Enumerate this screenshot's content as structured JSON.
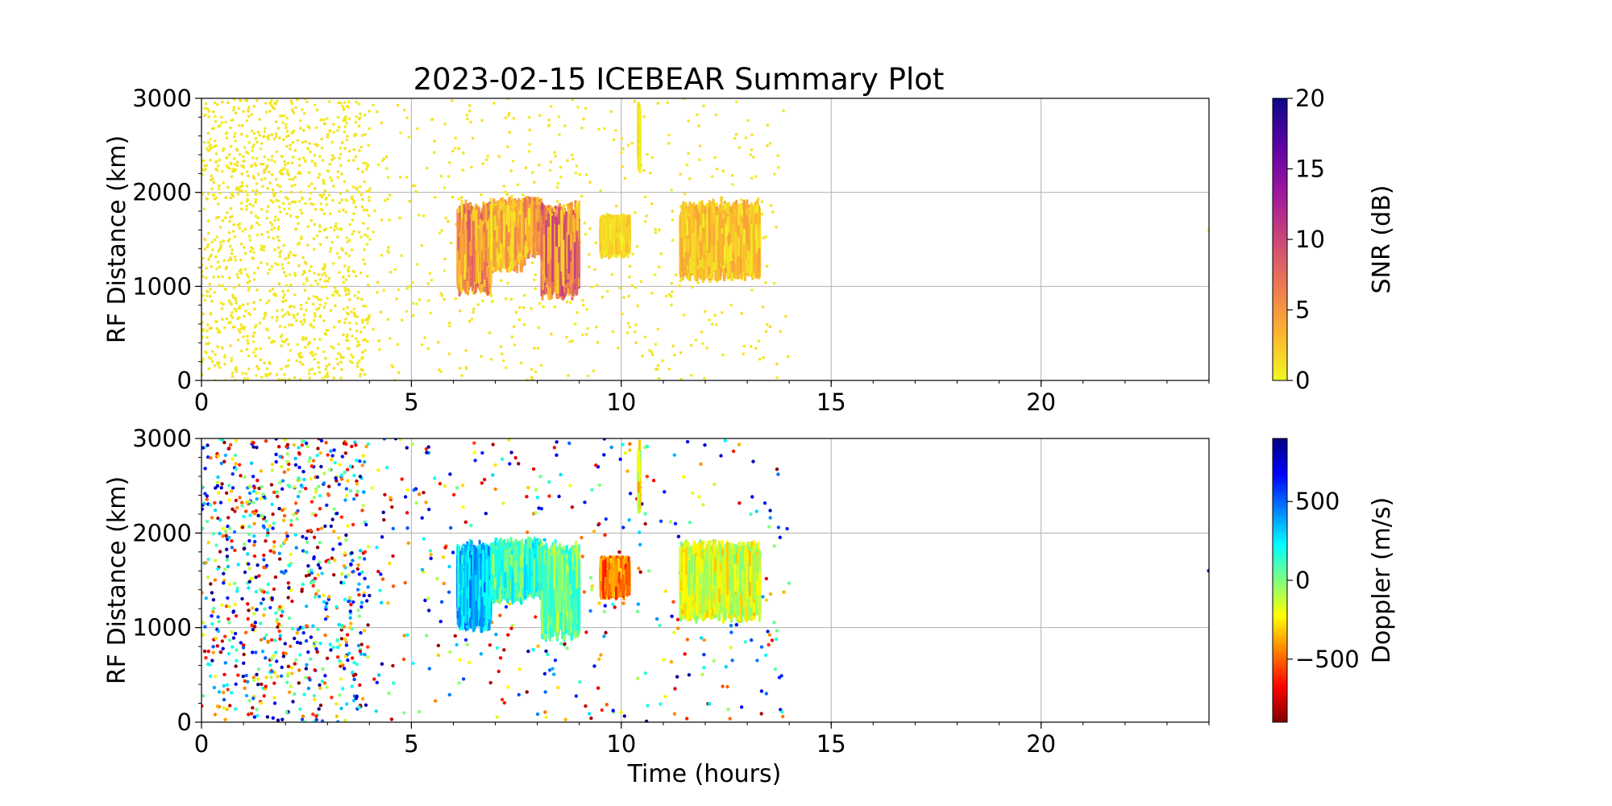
{
  "title": "2023-02-15 ICEBEAR Summary Plot",
  "chart_data": [
    {
      "type": "scatter",
      "name": "snr-panel",
      "xlabel": "",
      "ylabel": "RF Distance (km)",
      "xlim": [
        0,
        24
      ],
      "ylim": [
        0,
        3000
      ],
      "xticks": [
        "0",
        "5",
        "10",
        "15",
        "20"
      ],
      "xtick_values": [
        0,
        5,
        10,
        15,
        20
      ],
      "yticks": [
        "0",
        "1000",
        "2000",
        "3000"
      ],
      "ytick_values": [
        0,
        1000,
        2000,
        3000
      ],
      "grid": true,
      "colorbar": {
        "label": "SNR (dB)",
        "range": [
          0,
          20
        ],
        "ticks": [
          "0",
          "5",
          "10",
          "15",
          "20"
        ],
        "tick_values": [
          0,
          5,
          10,
          15,
          20
        ],
        "colormap": "plasma_r",
        "colors": [
          "#f0f921",
          "#fdb42f",
          "#ed7953",
          "#cc4778",
          "#9c179e",
          "#5c01a6",
          "#0d0887"
        ]
      },
      "background_noise": {
        "t_range": [
          0,
          14
        ],
        "density": "high for t<4, moderate after",
        "typical_snr": 0.5
      },
      "echo_regions": [
        {
          "t": [
            6.1,
            6.9
          ],
          "range_km": [
            900,
            1950
          ],
          "snr": 6
        },
        {
          "t": [
            6.9,
            7.7
          ],
          "range_km": [
            1150,
            1950
          ],
          "snr": 4
        },
        {
          "t": [
            7.7,
            8.1
          ],
          "range_km": [
            1300,
            1950
          ],
          "snr": 5
        },
        {
          "t": [
            8.1,
            9.0
          ],
          "range_km": [
            850,
            1950
          ],
          "snr": 7
        },
        {
          "t": [
            9.5,
            10.2
          ],
          "range_km": [
            1300,
            1750
          ],
          "snr": 2
        },
        {
          "t": [
            10.4,
            10.45
          ],
          "range_km": [
            2200,
            2980
          ],
          "snr": 1
        },
        {
          "t": [
            11.4,
            13.3
          ],
          "range_km": [
            1050,
            1950
          ],
          "snr": 3
        }
      ],
      "isolated_points": [
        {
          "t": 24.0,
          "range_km": 1600,
          "snr": 0.5
        }
      ]
    },
    {
      "type": "scatter",
      "name": "doppler-panel",
      "xlabel": "Time (hours)",
      "ylabel": "RF Distance (km)",
      "xlim": [
        0,
        24
      ],
      "ylim": [
        0,
        3000
      ],
      "xticks": [
        "0",
        "5",
        "10",
        "15",
        "20"
      ],
      "xtick_values": [
        0,
        5,
        10,
        15,
        20
      ],
      "yticks": [
        "0",
        "1000",
        "2000",
        "3000"
      ],
      "ytick_values": [
        0,
        1000,
        2000,
        3000
      ],
      "grid": true,
      "colorbar": {
        "label": "Doppler (m/s)",
        "range": [
          -900,
          900
        ],
        "ticks": [
          "−500",
          "0",
          "500"
        ],
        "tick_values": [
          -500,
          0,
          500
        ],
        "colormap": "jet_r",
        "colors": [
          "#800000",
          "#ff0000",
          "#ff8000",
          "#ffff00",
          "#80ff80",
          "#00ffff",
          "#0080ff",
          "#0000ff",
          "#000080"
        ]
      },
      "background_noise": {
        "t_range": [
          0,
          14
        ],
        "density": "high for t<4, moderate after",
        "doppler": "random full range"
      },
      "echo_regions": [
        {
          "t": [
            6.1,
            6.9
          ],
          "range_km": [
            950,
            1950
          ],
          "doppler": 350
        },
        {
          "t": [
            6.9,
            7.7
          ],
          "range_km": [
            1250,
            1950
          ],
          "doppler": 100
        },
        {
          "t": [
            7.7,
            8.1
          ],
          "range_km": [
            1300,
            1950
          ],
          "doppler": 150
        },
        {
          "t": [
            8.1,
            9.0
          ],
          "range_km": [
            850,
            1950
          ],
          "doppler": 50
        },
        {
          "t": [
            9.5,
            10.2
          ],
          "range_km": [
            1300,
            1750
          ],
          "doppler": -450
        },
        {
          "t": [
            10.4,
            10.45
          ],
          "range_km": [
            2200,
            2980
          ],
          "doppler": -200
        },
        {
          "t": [
            11.4,
            13.3
          ],
          "range_km": [
            1050,
            1950
          ],
          "doppler": -150
        }
      ],
      "isolated_points": [
        {
          "t": 24.0,
          "range_km": 1600,
          "doppler": 800
        }
      ]
    }
  ]
}
